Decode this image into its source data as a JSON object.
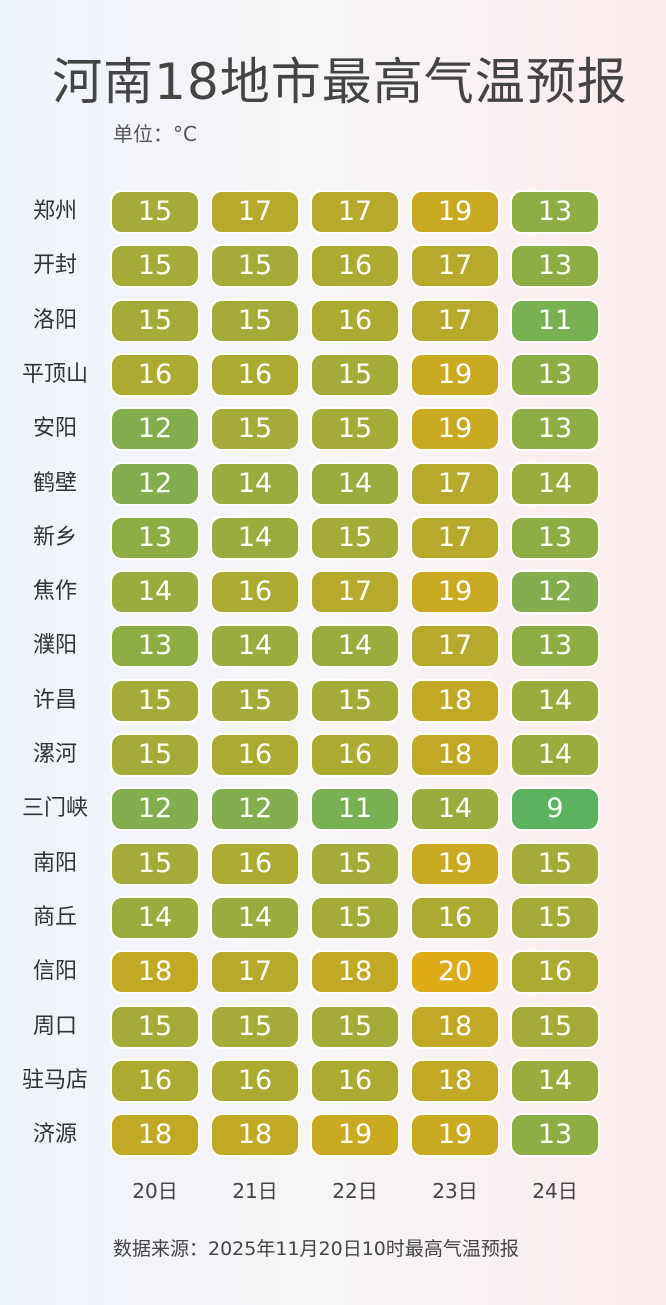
{
  "title": "河南18地市最高气温预报",
  "unit": "单位：°C",
  "source": "数据来源：2025年11月20日10时最高气温预报",
  "chart_data": {
    "type": "heatmap",
    "title": "河南18地市最高气温预报",
    "columns": [
      "20日",
      "21日",
      "22日",
      "23日",
      "24日"
    ],
    "rows": [
      "郑州",
      "开封",
      "洛阳",
      "平顶山",
      "安阳",
      "鹤壁",
      "新乡",
      "焦作",
      "濮阳",
      "许昌",
      "漯河",
      "三门峡",
      "南阳",
      "商丘",
      "信阳",
      "周口",
      "驻马店",
      "济源"
    ],
    "values": [
      [
        15,
        17,
        17,
        19,
        13
      ],
      [
        15,
        15,
        16,
        17,
        13
      ],
      [
        15,
        15,
        16,
        17,
        11
      ],
      [
        16,
        16,
        15,
        19,
        13
      ],
      [
        12,
        15,
        15,
        19,
        13
      ],
      [
        12,
        14,
        14,
        17,
        14
      ],
      [
        13,
        14,
        15,
        17,
        13
      ],
      [
        14,
        16,
        17,
        19,
        12
      ],
      [
        13,
        14,
        14,
        17,
        13
      ],
      [
        15,
        15,
        15,
        18,
        14
      ],
      [
        15,
        16,
        16,
        18,
        14
      ],
      [
        12,
        12,
        11,
        14,
        9
      ],
      [
        15,
        16,
        15,
        19,
        15
      ],
      [
        14,
        14,
        15,
        16,
        15
      ],
      [
        18,
        17,
        18,
        20,
        16
      ],
      [
        15,
        15,
        15,
        18,
        15
      ],
      [
        16,
        16,
        16,
        18,
        14
      ],
      [
        18,
        18,
        19,
        19,
        13
      ]
    ],
    "color_scale": {
      "stops": [
        {
          "value": 9,
          "color": "#5bb35f"
        },
        {
          "value": 11,
          "color": "#78b152"
        },
        {
          "value": 12,
          "color": "#82ae4d"
        },
        {
          "value": 13,
          "color": "#8fad45"
        },
        {
          "value": 14,
          "color": "#9aac3e"
        },
        {
          "value": 15,
          "color": "#a4ab38"
        },
        {
          "value": 16,
          "color": "#adaa31"
        },
        {
          "value": 17,
          "color": "#b6a92c"
        },
        {
          "value": 18,
          "color": "#c2a925"
        },
        {
          "value": 19,
          "color": "#cbaa22"
        },
        {
          "value": 20,
          "color": "#deaa18"
        }
      ]
    }
  }
}
